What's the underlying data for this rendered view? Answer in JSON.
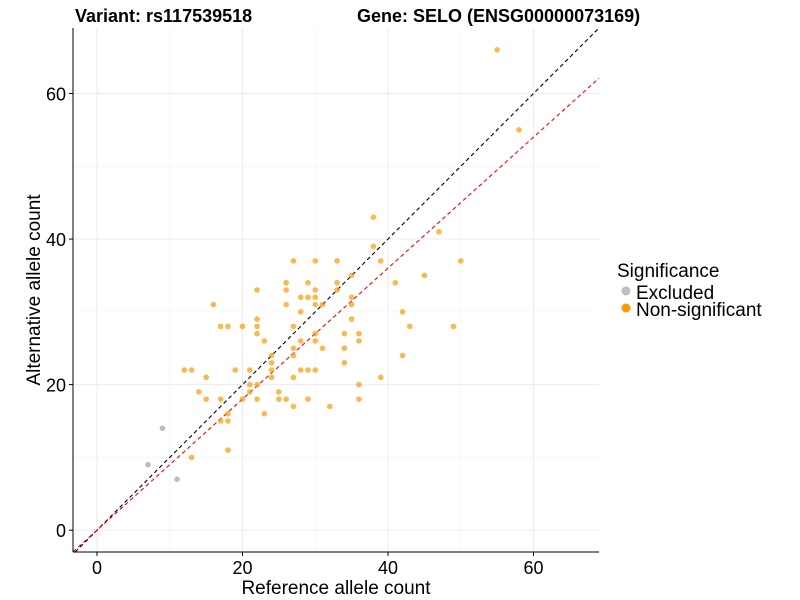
{
  "chart_data": {
    "type": "scatter",
    "title_left": "Variant: rs117539518",
    "title_right": "Gene: SELO (ENSG00000073169)",
    "xlabel": "Reference allele count",
    "ylabel": "Alternative allele count",
    "xlim": [
      -3.3,
      69
    ],
    "ylim": [
      -3,
      69
    ],
    "xticks": [
      0,
      20,
      40,
      60
    ],
    "yticks": [
      0,
      20,
      40,
      60
    ],
    "grid": true,
    "legend": {
      "title": "Significance",
      "position": "right",
      "entries": [
        {
          "label": "Excluded",
          "color": "#bebebe"
        },
        {
          "label": "Non-significant",
          "color": "#ff9900"
        }
      ]
    },
    "reference_lines": [
      {
        "name": "identity",
        "slope": 1,
        "intercept": 0,
        "color": "#000000",
        "style": "dashed"
      },
      {
        "name": "expected",
        "slope": 0.9,
        "intercept": 0,
        "color": "#ff0000",
        "style": "dashed"
      }
    ],
    "series": [
      {
        "name": "Excluded",
        "color": "#bebebe",
        "points": [
          [
            9,
            14
          ],
          [
            7,
            9
          ],
          [
            11,
            7
          ]
        ]
      },
      {
        "name": "Non-significant",
        "color": "#ff9900",
        "points": [
          [
            27,
            37
          ],
          [
            30,
            37
          ],
          [
            26,
            34
          ],
          [
            29,
            34
          ],
          [
            22,
            33
          ],
          [
            26,
            33
          ],
          [
            30,
            33
          ],
          [
            28,
            32
          ],
          [
            29,
            32
          ],
          [
            30,
            32
          ],
          [
            16,
            31
          ],
          [
            26,
            31
          ],
          [
            30,
            31
          ],
          [
            28,
            30
          ],
          [
            22,
            29
          ],
          [
            17,
            28
          ],
          [
            18,
            28
          ],
          [
            20,
            28
          ],
          [
            22,
            28
          ],
          [
            27,
            28
          ],
          [
            22,
            27
          ],
          [
            30,
            27
          ],
          [
            23,
            26
          ],
          [
            28,
            26
          ],
          [
            30,
            26
          ],
          [
            27,
            25
          ],
          [
            24,
            24
          ],
          [
            27,
            24
          ],
          [
            24,
            23
          ],
          [
            12,
            22
          ],
          [
            13,
            22
          ],
          [
            19,
            22
          ],
          [
            21,
            22
          ],
          [
            24,
            22
          ],
          [
            28,
            22
          ],
          [
            29,
            22
          ],
          [
            30,
            22
          ],
          [
            15,
            21
          ],
          [
            24,
            21
          ],
          [
            27,
            21
          ],
          [
            21,
            20
          ],
          [
            22,
            20
          ],
          [
            14,
            19
          ],
          [
            21,
            19
          ],
          [
            25,
            19
          ],
          [
            15,
            18
          ],
          [
            17,
            18
          ],
          [
            20,
            18
          ],
          [
            22,
            18
          ],
          [
            25,
            18
          ],
          [
            26,
            18
          ],
          [
            29,
            18
          ],
          [
            27,
            17
          ],
          [
            23,
            16
          ],
          [
            18,
            16
          ],
          [
            17,
            15
          ],
          [
            18,
            15
          ],
          [
            13,
            10
          ],
          [
            18,
            11
          ],
          [
            38,
            43
          ],
          [
            47,
            41
          ],
          [
            38,
            39
          ],
          [
            33,
            37
          ],
          [
            39,
            37
          ],
          [
            50,
            37
          ],
          [
            33,
            34
          ],
          [
            35,
            35
          ],
          [
            45,
            35
          ],
          [
            33,
            33
          ],
          [
            41,
            34
          ],
          [
            35,
            32
          ],
          [
            31,
            31
          ],
          [
            35,
            31
          ],
          [
            42,
            30
          ],
          [
            35,
            29
          ],
          [
            43,
            28
          ],
          [
            49,
            28
          ],
          [
            34,
            27
          ],
          [
            36,
            27
          ],
          [
            36,
            26
          ],
          [
            31,
            25
          ],
          [
            34,
            25
          ],
          [
            42,
            24
          ],
          [
            34,
            23
          ],
          [
            39,
            21
          ],
          [
            36,
            20
          ],
          [
            36,
            18
          ],
          [
            32,
            17
          ],
          [
            55,
            66
          ],
          [
            58,
            55
          ]
        ]
      }
    ]
  }
}
